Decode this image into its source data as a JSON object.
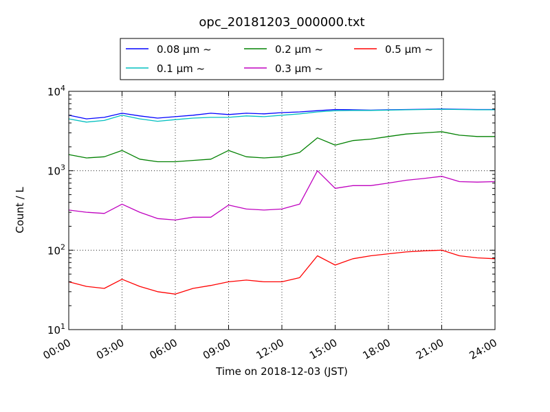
{
  "chart_data": {
    "type": "line",
    "title": "opc_20181203_000000.txt",
    "xlabel": "Time on 2018-12-03 (JST)",
    "ylabel": "Count / L",
    "y_scale": "log",
    "ylim": [
      10,
      10000
    ],
    "xlim": [
      0,
      24
    ],
    "x_unit": "hours",
    "grid": true,
    "legend_position": "top-center",
    "x_ticks": [
      {
        "value": 0,
        "label": "00:00"
      },
      {
        "value": 3,
        "label": "03:00"
      },
      {
        "value": 6,
        "label": "06:00"
      },
      {
        "value": 9,
        "label": "09:00"
      },
      {
        "value": 12,
        "label": "12:00"
      },
      {
        "value": 15,
        "label": "15:00"
      },
      {
        "value": 18,
        "label": "18:00"
      },
      {
        "value": 21,
        "label": "21:00"
      },
      {
        "value": 24,
        "label": "24:00"
      }
    ],
    "y_ticks": [
      {
        "value": 10,
        "base": "10",
        "exp": "1"
      },
      {
        "value": 100,
        "base": "10",
        "exp": "2"
      },
      {
        "value": 1000,
        "base": "10",
        "exp": "3"
      },
      {
        "value": 10000,
        "base": "10",
        "exp": "4"
      }
    ],
    "series": [
      {
        "name": "0.08 μm ~",
        "color": "#0000ff",
        "x": [
          0,
          1,
          2,
          3,
          4,
          5,
          6,
          7,
          8,
          9,
          10,
          11,
          12,
          13,
          14,
          15,
          16,
          17,
          18,
          19,
          20,
          21,
          22,
          23,
          24
        ],
        "y": [
          5000,
          4500,
          4700,
          5300,
          4900,
          4600,
          4800,
          5000,
          5300,
          5100,
          5300,
          5200,
          5400,
          5500,
          5700,
          5900,
          5850,
          5800,
          5850,
          5900,
          5950,
          6000,
          5950,
          5900,
          5900
        ]
      },
      {
        "name": "0.1 μm ~",
        "color": "#00bfbf",
        "x": [
          0,
          1,
          2,
          3,
          4,
          5,
          6,
          7,
          8,
          9,
          10,
          11,
          12,
          13,
          14,
          15,
          16,
          17,
          18,
          19,
          20,
          21,
          22,
          23,
          24
        ],
        "y": [
          4500,
          4100,
          4300,
          5000,
          4500,
          4200,
          4400,
          4600,
          4700,
          4700,
          4900,
          4800,
          5000,
          5200,
          5500,
          5700,
          5750,
          5750,
          5800,
          5850,
          5900,
          5950,
          5900,
          5850,
          5850
        ]
      },
      {
        "name": "0.2 μm ~",
        "color": "#008000",
        "x": [
          0,
          1,
          2,
          3,
          4,
          5,
          6,
          7,
          8,
          9,
          10,
          11,
          12,
          13,
          14,
          15,
          16,
          17,
          18,
          19,
          20,
          21,
          22,
          23,
          24
        ],
        "y": [
          1600,
          1450,
          1500,
          1800,
          1400,
          1300,
          1300,
          1350,
          1400,
          1800,
          1500,
          1450,
          1500,
          1700,
          2600,
          2100,
          2400,
          2500,
          2700,
          2900,
          3000,
          3100,
          2800,
          2700,
          2700
        ]
      },
      {
        "name": "0.3 μm ~",
        "color": "#bf00bf",
        "x": [
          0,
          1,
          2,
          3,
          4,
          5,
          6,
          7,
          8,
          9,
          10,
          11,
          12,
          13,
          14,
          15,
          16,
          17,
          18,
          19,
          20,
          21,
          22,
          23,
          24
        ],
        "y": [
          320,
          300,
          290,
          380,
          300,
          250,
          240,
          260,
          260,
          370,
          330,
          320,
          330,
          380,
          1000,
          600,
          650,
          650,
          700,
          760,
          800,
          850,
          730,
          720,
          730
        ]
      },
      {
        "name": "0.5 μm ~",
        "color": "#ff0000",
        "x": [
          0,
          1,
          2,
          3,
          4,
          5,
          6,
          7,
          8,
          9,
          10,
          11,
          12,
          13,
          14,
          15,
          16,
          17,
          18,
          19,
          20,
          21,
          22,
          23,
          24
        ],
        "y": [
          40,
          35,
          33,
          43,
          35,
          30,
          28,
          33,
          36,
          40,
          42,
          40,
          40,
          45,
          85,
          65,
          78,
          85,
          90,
          95,
          98,
          100,
          85,
          80,
          78
        ]
      }
    ]
  }
}
